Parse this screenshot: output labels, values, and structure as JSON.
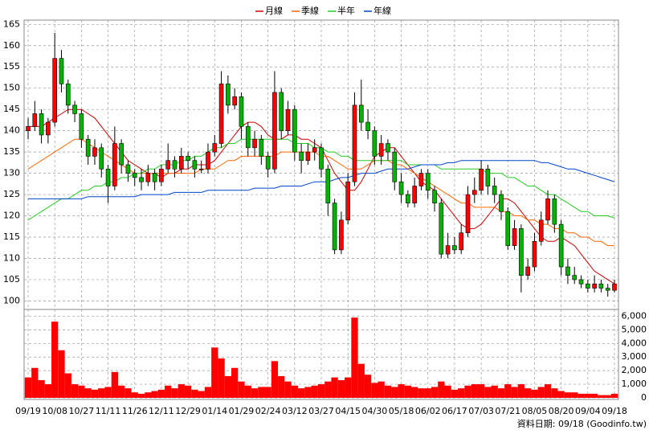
{
  "chart_data": {
    "type": "candlestick",
    "legend": "top",
    "grid": true,
    "up_color": "#ff0000",
    "down_color": "#00b400",
    "volume_color": "#ff0000",
    "categories": [
      "09/19",
      null,
      null,
      null,
      "10/08",
      null,
      null,
      null,
      "10/27",
      null,
      null,
      null,
      "11/11",
      null,
      null,
      null,
      "11/26",
      null,
      null,
      null,
      "12/11",
      null,
      null,
      null,
      "12/29",
      null,
      null,
      null,
      "01/14",
      null,
      null,
      null,
      "01/29",
      null,
      null,
      null,
      "02/24",
      null,
      null,
      null,
      "03/12",
      null,
      null,
      null,
      "03/27",
      null,
      null,
      null,
      "04/15",
      null,
      null,
      null,
      "04/30",
      null,
      null,
      null,
      "05/18",
      null,
      null,
      null,
      "06/02",
      null,
      null,
      null,
      "06/17",
      null,
      null,
      null,
      "07/03",
      null,
      null,
      null,
      "07/21",
      null,
      null,
      null,
      "08/05",
      null,
      null,
      null,
      "08/20",
      null,
      null,
      null,
      "09/04",
      null,
      null,
      null,
      "09/18"
    ],
    "open": [
      140,
      141,
      144,
      139,
      142,
      157,
      151,
      146,
      144,
      138,
      134,
      136,
      131,
      127,
      137,
      132,
      130,
      129,
      128,
      130,
      128,
      131,
      133,
      131,
      134,
      133,
      131,
      131,
      135,
      137,
      151,
      146,
      148,
      141,
      136,
      138,
      134,
      131,
      149,
      140,
      145,
      135,
      133,
      135,
      136,
      131,
      123,
      112,
      119,
      128,
      146,
      142,
      140,
      134,
      137,
      135,
      128,
      125,
      123,
      127,
      130,
      126,
      123,
      111,
      113,
      112,
      116,
      125,
      126,
      131,
      127,
      125,
      121,
      113,
      117,
      106,
      108,
      114,
      119,
      124,
      118,
      108,
      106,
      105,
      104,
      103,
      104,
      103,
      102.5
    ],
    "high": [
      143,
      147,
      145,
      143,
      163,
      159,
      152,
      147,
      145,
      139,
      138,
      137,
      132,
      141,
      138,
      133,
      131,
      131,
      132,
      131,
      132,
      137,
      134,
      136,
      135,
      134,
      133,
      137,
      139,
      154,
      153,
      150,
      149,
      142,
      140,
      139,
      135,
      154,
      150,
      147,
      146,
      137,
      137,
      138,
      137,
      132,
      124,
      121,
      130,
      149,
      152,
      145,
      141,
      139,
      138,
      136,
      130,
      126,
      129,
      131,
      131,
      127,
      124,
      116,
      115,
      118,
      127,
      129,
      133,
      132,
      129,
      126,
      122,
      119,
      118,
      110,
      116,
      121,
      126,
      125,
      119,
      110,
      108,
      106,
      105,
      106,
      105,
      104,
      105
    ],
    "low": [
      138,
      140,
      137,
      137,
      141,
      149,
      144,
      142,
      136,
      132,
      132,
      129,
      123,
      126,
      130,
      128,
      127,
      126,
      127,
      126,
      127,
      130,
      129,
      130,
      131,
      129,
      130,
      130,
      134,
      136,
      144,
      145,
      138,
      134,
      134,
      132,
      129,
      130,
      138,
      139,
      133,
      130,
      132,
      133,
      129,
      120,
      111,
      111,
      118,
      127,
      140,
      138,
      132,
      132,
      133,
      126,
      123,
      122,
      122,
      126,
      124,
      121,
      110,
      110,
      111,
      111,
      115,
      123,
      125,
      125,
      123,
      119,
      112,
      112,
      102,
      105,
      107,
      113,
      118,
      116,
      106,
      104,
      104,
      103,
      102,
      102,
      102,
      101,
      102
    ],
    "close": [
      141,
      144,
      139,
      142,
      157,
      151,
      146,
      144,
      138,
      134,
      136,
      131,
      127,
      137,
      132,
      130,
      129,
      128,
      130,
      128,
      131,
      133,
      131,
      134,
      133,
      131,
      131,
      135,
      137,
      151,
      146,
      148,
      141,
      136,
      138,
      134,
      131,
      149,
      140,
      145,
      135,
      133,
      135,
      136,
      131,
      123,
      112,
      119,
      128,
      146,
      142,
      140,
      134,
      137,
      135,
      128,
      125,
      123,
      127,
      130,
      126,
      123,
      111,
      113,
      112,
      116,
      125,
      126,
      131,
      127,
      125,
      121,
      113,
      117,
      106,
      108,
      114,
      119,
      124,
      118,
      108,
      106,
      105,
      104,
      103,
      104,
      103,
      102.5,
      104
    ],
    "volume": [
      1500,
      2200,
      1300,
      1000,
      5600,
      3500,
      1800,
      1000,
      900,
      700,
      600,
      700,
      800,
      1900,
      900,
      700,
      400,
      300,
      400,
      500,
      600,
      900,
      700,
      1000,
      900,
      600,
      500,
      800,
      3700,
      2900,
      1600,
      2200,
      1200,
      900,
      700,
      800,
      800,
      2700,
      1600,
      1200,
      900,
      700,
      800,
      900,
      1000,
      1200,
      1500,
      1300,
      1500,
      5900,
      2500,
      1700,
      1100,
      1200,
      900,
      800,
      1000,
      900,
      800,
      700,
      700,
      800,
      1200,
      900,
      600,
      700,
      900,
      1000,
      1000,
      800,
      900,
      700,
      1000,
      800,
      1000,
      700,
      600,
      800,
      1000,
      700,
      500,
      400,
      400,
      300,
      300,
      300,
      200,
      200,
      300
    ],
    "series": [
      {
        "name": "月線",
        "color": "#cc0000",
        "values": [
          141,
          141,
          141,
          142,
          143,
          144,
          145,
          145,
          145,
          144,
          143,
          141,
          139,
          137,
          135,
          133,
          132,
          131,
          130,
          130,
          129,
          130,
          130,
          131,
          131,
          132,
          132,
          132,
          133,
          135,
          137,
          139,
          141,
          142,
          142,
          141,
          139,
          138,
          138,
          139,
          139,
          138,
          138,
          137,
          136,
          133,
          130,
          128,
          126,
          126,
          128,
          131,
          134,
          135,
          136,
          136,
          134,
          132,
          130,
          128,
          127,
          126,
          124,
          122,
          120,
          118,
          117,
          117,
          118,
          120,
          122,
          124,
          124,
          123,
          121,
          119,
          117,
          115,
          114,
          114,
          115,
          114,
          113,
          111,
          109,
          107,
          106,
          105,
          104
        ]
      },
      {
        "name": "季線",
        "color": "#ff6600",
        "values": [
          131,
          132,
          133,
          134,
          135,
          136,
          137,
          138,
          138,
          137,
          136,
          135,
          134,
          133,
          132,
          131,
          130,
          130,
          130,
          130,
          130,
          130,
          130,
          130,
          130,
          130,
          131,
          131,
          131,
          132,
          133,
          133,
          134,
          134,
          134,
          134,
          134,
          134,
          135,
          135,
          135,
          135,
          135,
          135,
          134,
          134,
          133,
          132,
          131,
          131,
          131,
          132,
          133,
          133,
          133,
          132,
          132,
          131,
          130,
          129,
          128,
          127,
          126,
          125,
          124,
          123,
          123,
          122,
          122,
          122,
          122,
          121,
          121,
          120,
          120,
          119,
          119,
          118,
          118,
          117,
          117,
          116,
          116,
          115,
          115,
          114,
          114,
          113,
          113
        ]
      },
      {
        "name": "半年",
        "color": "#22cc22",
        "values": [
          119,
          120,
          121,
          122,
          123,
          124,
          124,
          125,
          126,
          126,
          127,
          127,
          128,
          128,
          129,
          129,
          130,
          130,
          131,
          131,
          132,
          132,
          132,
          133,
          133,
          134,
          134,
          135,
          136,
          136,
          137,
          137,
          138,
          138,
          138,
          138,
          138,
          138,
          138,
          138,
          137,
          137,
          137,
          136,
          136,
          135,
          135,
          134,
          134,
          133,
          133,
          133,
          133,
          133,
          133,
          133,
          133,
          132,
          132,
          132,
          132,
          132,
          131,
          131,
          131,
          131,
          131,
          131,
          131,
          130,
          130,
          130,
          129,
          129,
          128,
          127,
          127,
          126,
          125,
          125,
          124,
          123,
          122,
          121,
          121,
          120,
          120,
          120,
          119.5
        ]
      },
      {
        "name": "年線",
        "color": "#0044cc",
        "values": [
          124,
          124,
          124,
          124,
          124,
          124,
          124,
          124,
          124,
          124.5,
          124.5,
          124.5,
          124.5,
          124.5,
          124.5,
          124.5,
          124.5,
          125,
          125,
          125,
          125,
          125,
          125.5,
          125.5,
          125.5,
          125.5,
          125.5,
          126,
          126,
          126,
          126,
          126,
          126,
          126,
          126.5,
          126.5,
          126.5,
          126.5,
          127,
          127,
          127,
          127,
          127.5,
          128,
          128,
          128,
          128.5,
          129,
          129,
          129.5,
          130,
          130,
          130,
          130.5,
          131,
          131,
          131,
          131,
          131.5,
          132,
          132,
          132,
          132,
          132.5,
          132.5,
          133,
          133,
          133,
          133,
          133,
          133,
          133,
          133,
          133,
          133,
          133,
          133,
          132.5,
          132.5,
          132,
          131.5,
          131,
          131,
          130.5,
          130,
          129.5,
          129,
          128.5,
          128
        ]
      }
    ],
    "ylim": [
      98,
      166
    ],
    "yticks": [
      100,
      105,
      110,
      115,
      120,
      125,
      130,
      135,
      140,
      145,
      150,
      155,
      160,
      165
    ],
    "y2lim": [
      0,
      6500
    ],
    "y2ticks": [
      0,
      {
        "value": 1000,
        "label": "1,000"
      },
      {
        "value": 2000,
        "label": "2,000"
      },
      {
        "value": 3000,
        "label": "3,000"
      },
      {
        "value": 4000,
        "label": "4,000"
      },
      {
        "value": 5000,
        "label": "5,000"
      },
      {
        "value": 6000,
        "label": "6,000"
      }
    ],
    "footer": "資料日期: 09/18 (Goodinfo.tw)"
  }
}
